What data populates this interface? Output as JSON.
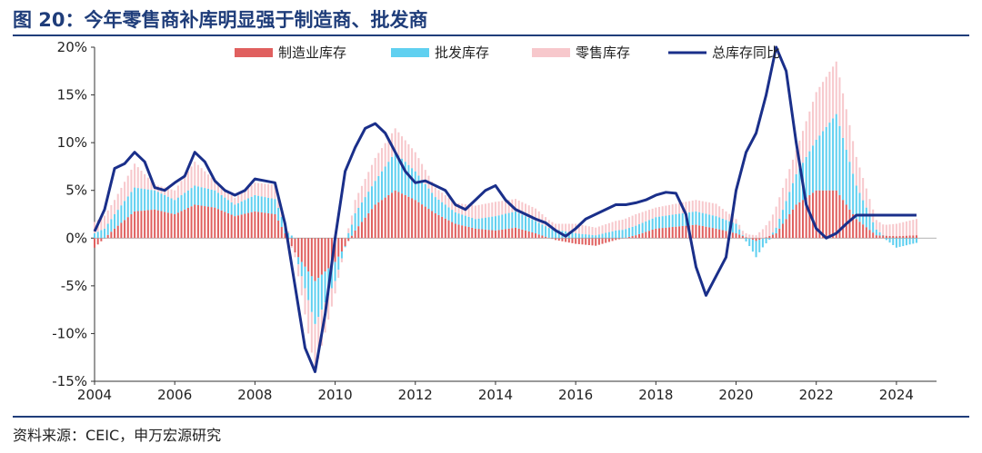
{
  "title": "图 20：今年零售商补库明显强于制造商、批发商",
  "source": "资料来源：CEIC，申万宏源研究",
  "colors": {
    "manufacturing": "#e0605f",
    "wholesale": "#60d0f0",
    "retail": "#f7c8cc",
    "total": "#1a2f8a",
    "brand": "#1f3d7a"
  },
  "chart_data": {
    "type": "bar",
    "title": "",
    "xlabel": "",
    "ylabel": "",
    "ylim": [
      -15,
      20
    ],
    "xlim": [
      2004,
      2025
    ],
    "yticks": [
      -15,
      -10,
      -5,
      0,
      5,
      10,
      15,
      20
    ],
    "ytick_labels": [
      "-15%",
      "-10%",
      "-5%",
      "0%",
      "5%",
      "10%",
      "15%",
      "20%"
    ],
    "xticks": [
      2004,
      2006,
      2008,
      2010,
      2012,
      2014,
      2016,
      2018,
      2020,
      2022,
      2024
    ],
    "xtick_labels": [
      "2004",
      "2006",
      "2008",
      "2010",
      "2012",
      "2014",
      "2016",
      "2018",
      "2020",
      "2022",
      "2024"
    ],
    "stacked": true,
    "legend": [
      "制造业库存",
      "批发库存",
      "零售库存",
      "总库存同比"
    ],
    "legend_position": "top",
    "series": [
      {
        "name": "制造业库存",
        "kind": "bar",
        "x": [
          2004.0,
          2004.5,
          2005.0,
          2005.5,
          2006.0,
          2006.5,
          2007.0,
          2007.5,
          2008.0,
          2008.5,
          2009.0,
          2009.5,
          2010.0,
          2010.5,
          2011.0,
          2011.5,
          2012.0,
          2012.5,
          2013.0,
          2013.5,
          2014.0,
          2014.5,
          2015.0,
          2015.5,
          2016.0,
          2016.5,
          2017.0,
          2017.5,
          2018.0,
          2018.5,
          2019.0,
          2019.5,
          2020.0,
          2020.5,
          2021.0,
          2021.5,
          2022.0,
          2022.5,
          2023.0,
          2023.5,
          2024.0,
          2024.5
        ],
        "values": [
          -1.0,
          1.0,
          2.8,
          3.0,
          2.5,
          3.5,
          3.2,
          2.3,
          2.8,
          2.5,
          -1.5,
          -4.5,
          -2.5,
          0.8,
          3.5,
          5.0,
          4.0,
          2.6,
          1.5,
          1.0,
          0.8,
          1.1,
          0.5,
          -0.2,
          -0.6,
          -0.8,
          -0.2,
          0.3,
          1.0,
          1.2,
          1.4,
          1.0,
          0.5,
          -0.3,
          0.5,
          3.5,
          5.0,
          5.0,
          2.0,
          0.3,
          0.2,
          0.3
        ]
      },
      {
        "name": "批发库存",
        "kind": "bar",
        "x": [
          2004.0,
          2004.5,
          2005.0,
          2005.5,
          2006.0,
          2006.5,
          2007.0,
          2007.5,
          2008.0,
          2008.5,
          2009.0,
          2009.5,
          2010.0,
          2010.5,
          2011.0,
          2011.5,
          2012.0,
          2012.5,
          2013.0,
          2013.5,
          2014.0,
          2014.5,
          2015.0,
          2015.5,
          2016.0,
          2016.5,
          2017.0,
          2017.5,
          2018.0,
          2018.5,
          2019.0,
          2019.5,
          2020.0,
          2020.5,
          2021.0,
          2021.5,
          2022.0,
          2022.5,
          2023.0,
          2023.5,
          2024.0,
          2024.5
        ],
        "values": [
          0.5,
          1.5,
          2.5,
          2.0,
          1.5,
          2.0,
          1.8,
          1.2,
          1.7,
          1.6,
          0.0,
          -4.5,
          -2.0,
          1.8,
          2.5,
          4.0,
          3.0,
          1.7,
          1.2,
          1.0,
          1.5,
          1.7,
          1.3,
          0.9,
          0.5,
          0.3,
          0.8,
          1.0,
          1.2,
          1.3,
          1.4,
          1.3,
          1.0,
          -1.7,
          0.6,
          3.2,
          5.3,
          8.0,
          3.5,
          0.6,
          -1.0,
          -0.5
        ]
      },
      {
        "name": "零售库存",
        "kind": "bar",
        "x": [
          2004.0,
          2004.5,
          2005.0,
          2005.5,
          2006.0,
          2006.5,
          2007.0,
          2007.5,
          2008.0,
          2008.5,
          2009.0,
          2009.5,
          2010.0,
          2010.5,
          2011.0,
          2011.5,
          2012.0,
          2012.5,
          2013.0,
          2013.5,
          2014.0,
          2014.5,
          2015.0,
          2015.5,
          2016.0,
          2016.5,
          2017.0,
          2017.5,
          2018.0,
          2018.5,
          2019.0,
          2019.5,
          2020.0,
          2020.5,
          2021.0,
          2021.5,
          2022.0,
          2022.5,
          2023.0,
          2023.5,
          2024.0,
          2024.5
        ],
        "values": [
          1.2,
          1.5,
          2.5,
          0.6,
          1.0,
          2.5,
          1.0,
          0.7,
          1.3,
          1.5,
          -0.5,
          -5.0,
          -1.3,
          1.4,
          2.4,
          2.5,
          2.0,
          1.0,
          1.0,
          1.4,
          1.5,
          1.3,
          1.3,
          0.6,
          1.0,
          0.8,
          1.0,
          1.2,
          1.0,
          1.1,
          1.2,
          1.3,
          0.5,
          0.3,
          2.2,
          2.5,
          5.0,
          5.5,
          3.0,
          1.0,
          1.3,
          1.7
        ]
      },
      {
        "name": "总库存同比",
        "kind": "line",
        "x": [
          2004.0,
          2004.25,
          2004.5,
          2004.75,
          2005.0,
          2005.25,
          2005.5,
          2005.75,
          2006.0,
          2006.25,
          2006.5,
          2006.75,
          2007.0,
          2007.25,
          2007.5,
          2007.75,
          2008.0,
          2008.25,
          2008.5,
          2008.75,
          2009.0,
          2009.25,
          2009.5,
          2009.75,
          2010.0,
          2010.25,
          2010.5,
          2010.75,
          2011.0,
          2011.25,
          2011.5,
          2011.75,
          2012.0,
          2012.25,
          2012.5,
          2012.75,
          2013.0,
          2013.25,
          2013.5,
          2013.75,
          2014.0,
          2014.25,
          2014.5,
          2014.75,
          2015.0,
          2015.25,
          2015.5,
          2015.75,
          2016.0,
          2016.25,
          2016.5,
          2016.75,
          2017.0,
          2017.25,
          2017.5,
          2017.75,
          2018.0,
          2018.25,
          2018.5,
          2018.75,
          2019.0,
          2019.25,
          2019.5,
          2019.75,
          2020.0,
          2020.25,
          2020.5,
          2020.75,
          2021.0,
          2021.25,
          2021.5,
          2021.75,
          2022.0,
          2022.25,
          2022.5,
          2022.75,
          2023.0,
          2023.25,
          2023.5,
          2023.75,
          2024.0,
          2024.25,
          2024.5
        ],
        "values": [
          0.7,
          3.0,
          7.3,
          7.8,
          9.0,
          8.0,
          5.3,
          5.0,
          5.8,
          6.5,
          9.0,
          8.0,
          6.0,
          5.0,
          4.5,
          5.0,
          6.2,
          6.0,
          5.8,
          1.5,
          -5.0,
          -11.5,
          -14.0,
          -8.0,
          0.0,
          7.0,
          9.5,
          11.5,
          12.0,
          11.0,
          9.0,
          7.0,
          5.8,
          6.0,
          5.5,
          5.0,
          3.5,
          3.0,
          4.0,
          5.0,
          5.5,
          4.0,
          3.0,
          2.5,
          2.0,
          1.6,
          0.8,
          0.2,
          1.0,
          2.0,
          2.5,
          3.0,
          3.5,
          3.5,
          3.7,
          4.0,
          4.5,
          4.8,
          4.7,
          2.5,
          -3.0,
          -6.0,
          -4.0,
          -2.0,
          5.0,
          9.0,
          11.0,
          15.0,
          20.0,
          17.5,
          10.0,
          3.5,
          1.0,
          0.0,
          0.5,
          1.5,
          2.4,
          2.4,
          2.4,
          2.4,
          2.4,
          2.4,
          2.4
        ]
      }
    ]
  }
}
